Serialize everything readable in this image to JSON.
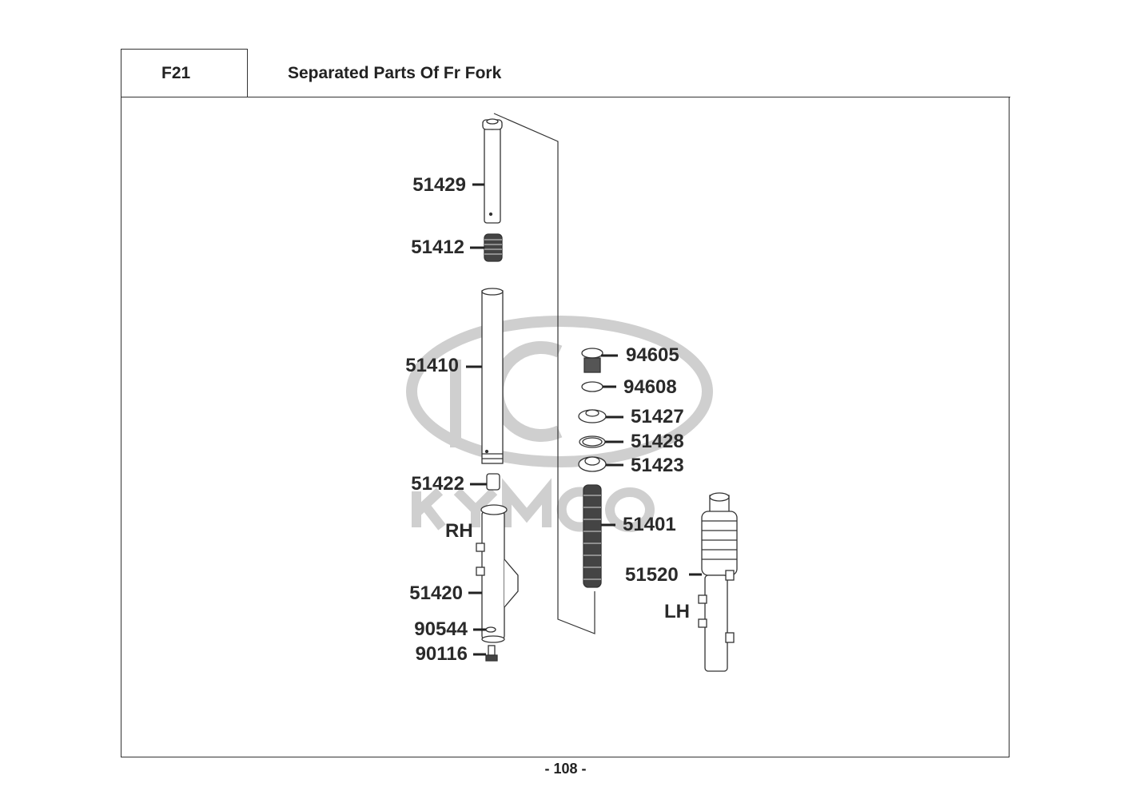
{
  "header": {
    "code": "F21",
    "title": "Separated Parts Of Fr Fork"
  },
  "watermark": {
    "text": "KYMCO",
    "color": "#c8c8c8"
  },
  "parts": {
    "p51429": "51429",
    "p51412": "51412",
    "p51410": "51410",
    "p51422": "51422",
    "p51420": "51420",
    "p90544": "90544",
    "p90116": "90116",
    "p94605": "94605",
    "p94608": "94608",
    "p51427": "51427",
    "p51428": "51428",
    "p51423": "51423",
    "p51401": "51401",
    "p51520": "51520"
  },
  "sides": {
    "right": "RH",
    "left": "LH"
  },
  "footer": {
    "page": "- 108 -"
  }
}
